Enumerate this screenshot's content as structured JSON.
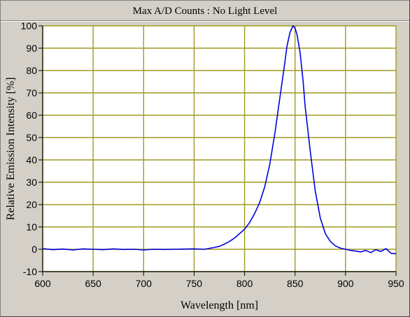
{
  "chart_data": {
    "type": "line",
    "title": "Max A/D Counts : No Light Level",
    "xlabel": "Wavelength [nm]",
    "ylabel": "Relative Emission Intensity [%]",
    "xlim": [
      600,
      950
    ],
    "ylim": [
      -10,
      100
    ],
    "xticks": [
      600,
      650,
      700,
      750,
      800,
      850,
      900,
      950
    ],
    "yticks": [
      -10,
      0,
      10,
      20,
      30,
      40,
      50,
      60,
      70,
      80,
      90,
      100
    ],
    "grid": true,
    "colors": {
      "plot_background": "#ffffff",
      "grid": "#a09a20",
      "series": "#0000e0",
      "panel": "#d4d0c8"
    },
    "series": [
      {
        "x": [
          600,
          610,
          620,
          630,
          640,
          650,
          660,
          670,
          680,
          690,
          700,
          710,
          720,
          730,
          740,
          750,
          760,
          770,
          775,
          780,
          785,
          790,
          795,
          800,
          805,
          810,
          815,
          820,
          825,
          830,
          835,
          840,
          842,
          845,
          848,
          850,
          852,
          855,
          858,
          860,
          865,
          870,
          875,
          880,
          885,
          890,
          895,
          900,
          905,
          910,
          915,
          920,
          925,
          930,
          935,
          940,
          945,
          950
        ],
        "y": [
          0.3,
          -0.2,
          0.1,
          -0.3,
          0.2,
          0,
          -0.2,
          0.2,
          -0.1,
          0,
          -0.3,
          0,
          -0.1,
          0,
          0.1,
          0.2,
          0,
          0.8,
          1.3,
          2.3,
          3.5,
          5,
          7,
          9,
          12,
          16,
          21,
          28,
          38,
          52,
          68,
          84,
          91,
          97,
          100,
          99,
          96,
          88,
          75,
          64,
          44,
          26,
          14,
          7,
          3.5,
          1.5,
          0.5,
          0,
          -0.5,
          -0.8,
          -1.2,
          -0.5,
          -1.5,
          -0.2,
          -1,
          0.3,
          -1.8,
          -2
        ]
      }
    ]
  }
}
